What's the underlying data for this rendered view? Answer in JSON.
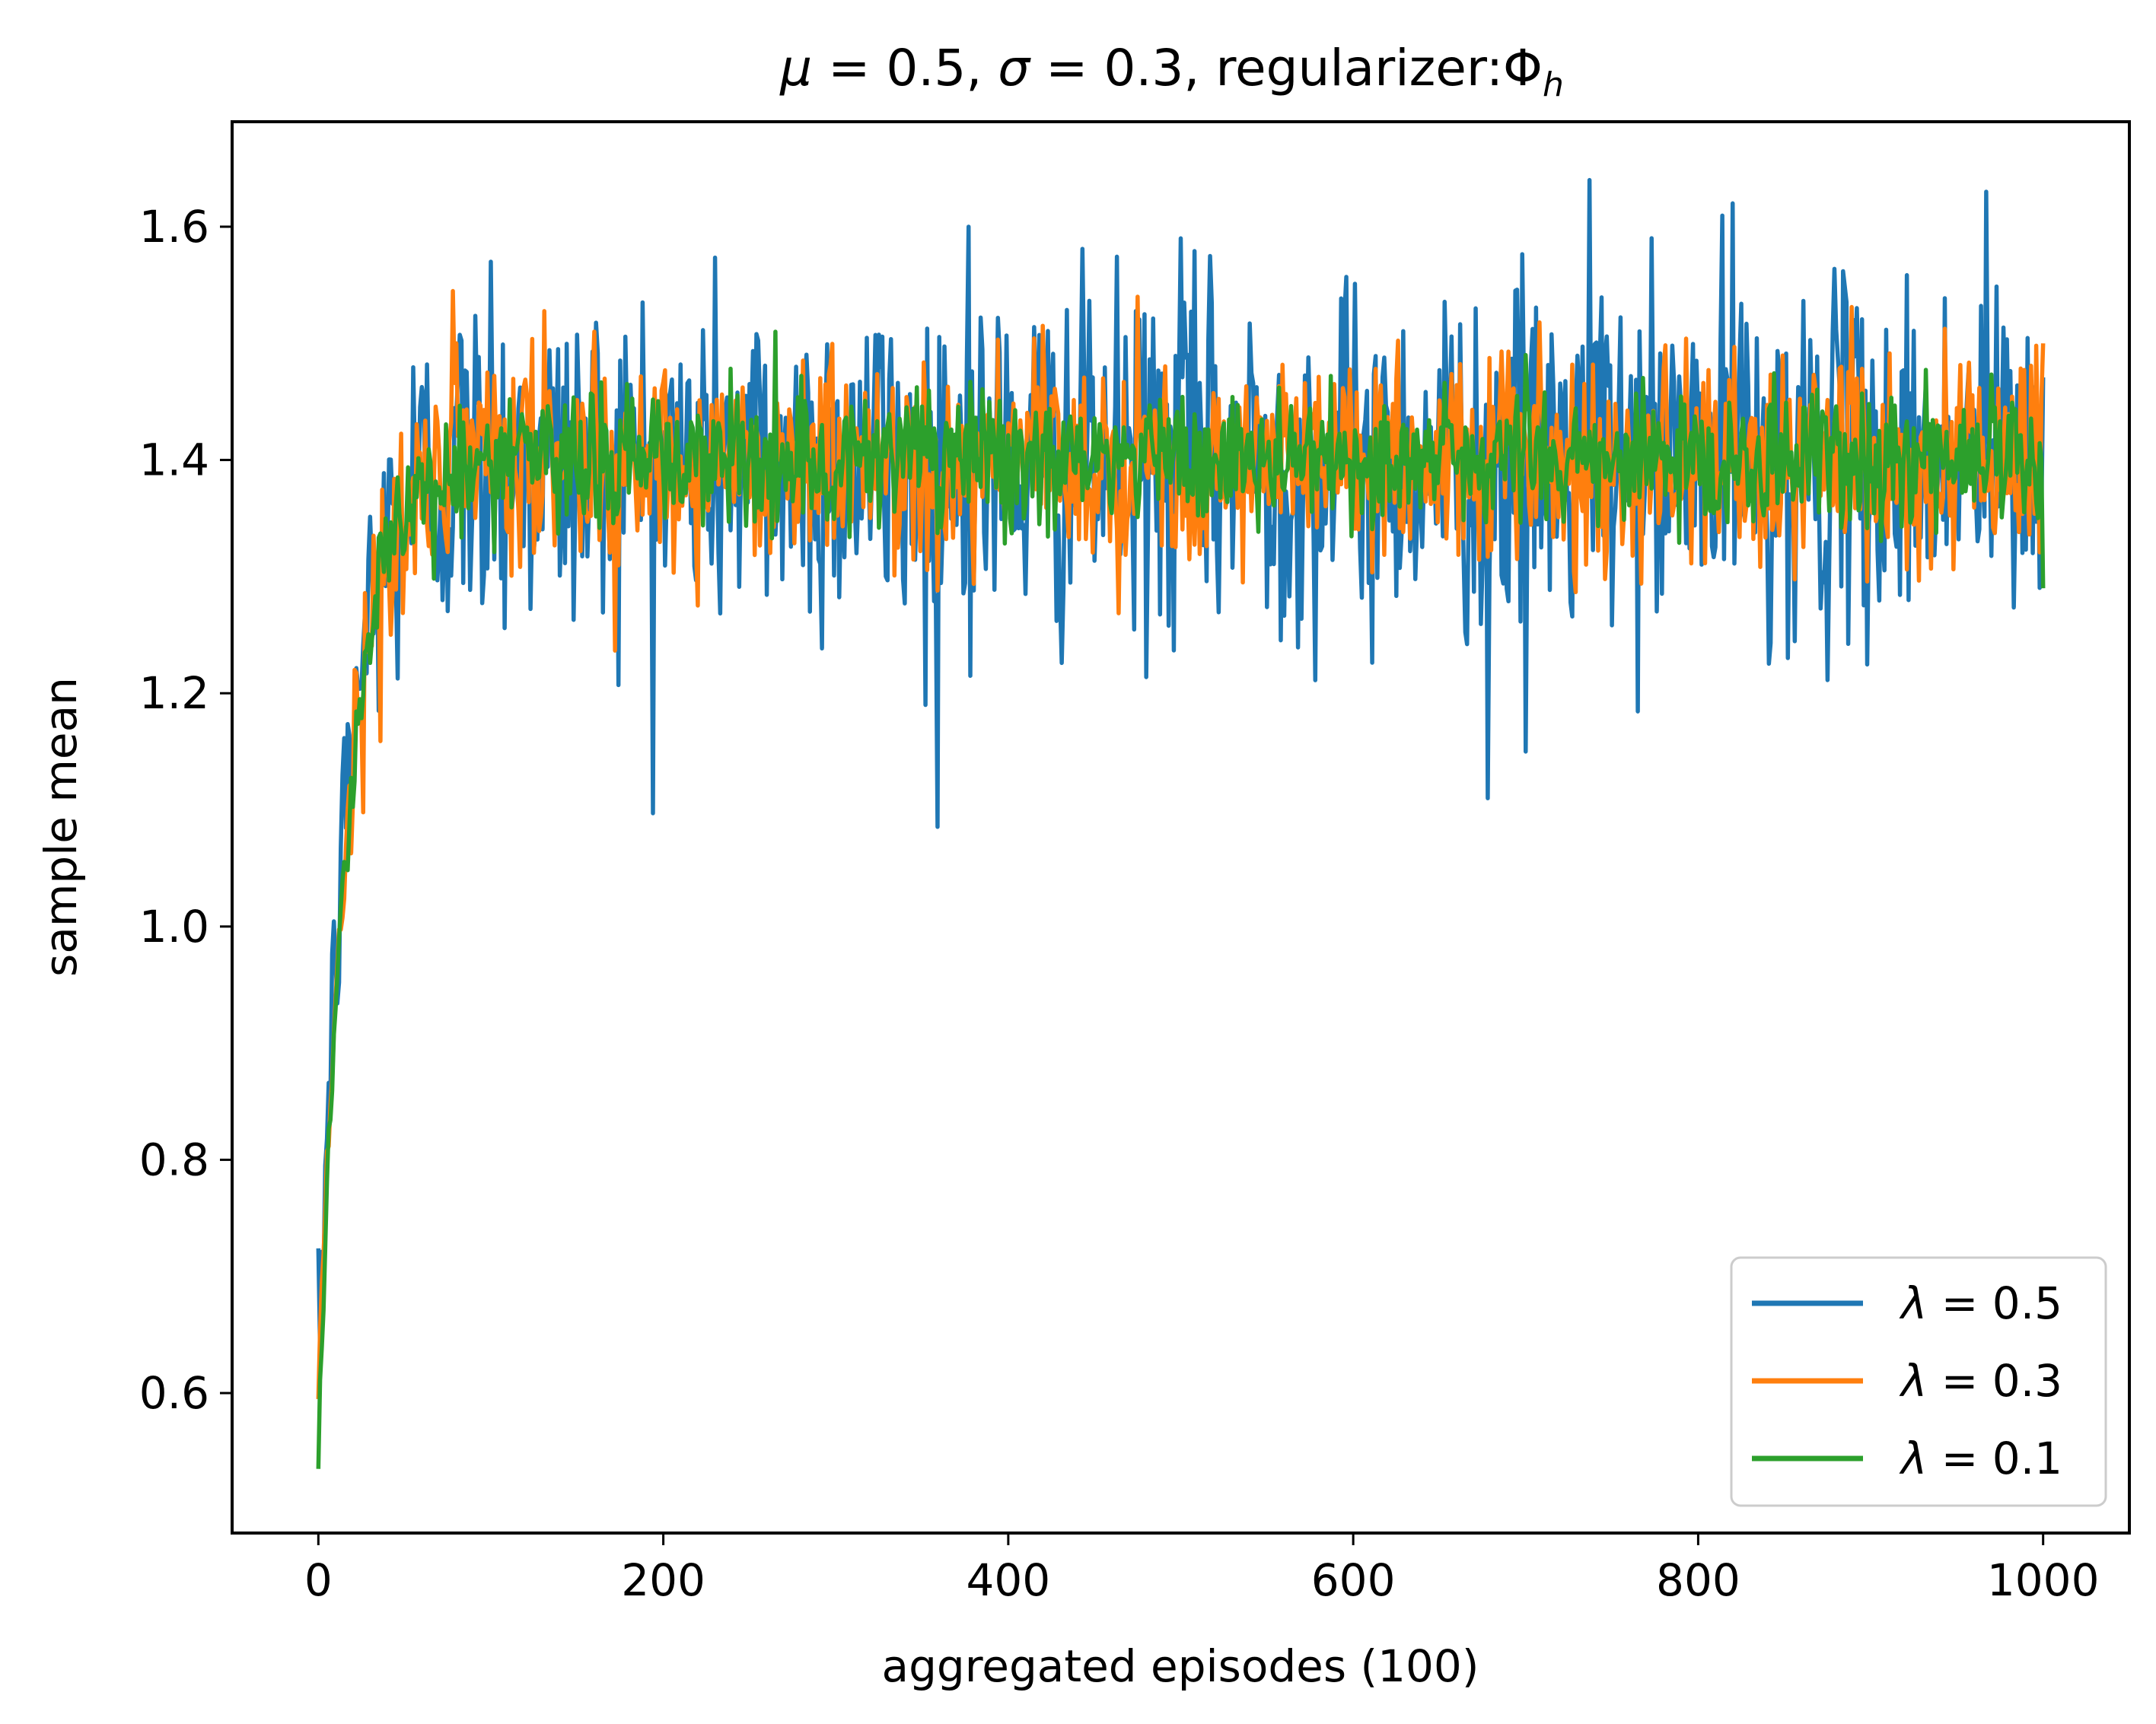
{
  "chart_data": {
    "type": "line",
    "title": "μ = 0.5, σ = 0.3, regularizer:Φh",
    "title_parts": {
      "mu_sym": "μ",
      "mu_eq": " = 0.5, ",
      "sigma_sym": "σ",
      "sigma_eq": " = 0.3, regularizer:Φ",
      "sub": "h"
    },
    "xlabel": "aggregated episodes (100)",
    "ylabel": "sample mean",
    "xlim": [
      -50,
      1050
    ],
    "ylim": [
      0.48,
      1.69
    ],
    "xticks": [
      0,
      200,
      400,
      600,
      800,
      1000
    ],
    "xtick_labels": [
      "0",
      "200",
      "400",
      "600",
      "800",
      "1000"
    ],
    "yticks": [
      0.6,
      0.8,
      1.0,
      1.2,
      1.4,
      1.6
    ],
    "ytick_labels": [
      "0.6",
      "0.8",
      "1.0",
      "1.2",
      "1.4",
      "1.6"
    ],
    "grid": false,
    "legend_position": "lower-right",
    "x_range": [
      0,
      1000
    ],
    "series": [
      {
        "name": "λ = 0.5",
        "legend_sym": "λ",
        "legend_eq": " = 0.5",
        "color": "#1f77b4",
        "start": 0.62,
        "plateau": 1.4,
        "rise_rate": 0.06,
        "noise": 0.075,
        "spikes": [
          [
            100,
            1.57
          ],
          [
            377,
            1.6
          ],
          [
            500,
            1.59
          ],
          [
            678,
            1.11
          ],
          [
            700,
            1.15
          ],
          [
            737,
            1.64
          ],
          [
            820,
            1.62
          ],
          [
            967,
            1.63
          ],
          [
            352,
            1.19
          ]
        ]
      },
      {
        "name": "λ = 0.3",
        "legend_sym": "λ",
        "legend_eq": " = 0.3",
        "color": "#ff7f0e",
        "start": 0.61,
        "plateau": 1.4,
        "rise_rate": 0.055,
        "noise": 0.045,
        "spikes": [
          [
            80,
            1.5
          ],
          [
            160,
            1.51
          ],
          [
            475,
            1.54
          ],
          [
            1000,
            1.5
          ]
        ]
      },
      {
        "name": "λ = 0.1",
        "legend_sym": "λ",
        "legend_eq": " = 0.1",
        "color": "#2ca02c",
        "start": 0.56,
        "plateau": 1.4,
        "rise_rate": 0.058,
        "noise": 0.03,
        "spikes": [
          [
            265,
            1.51
          ],
          [
            700,
            1.49
          ],
          [
            1000,
            1.29
          ]
        ]
      }
    ]
  }
}
